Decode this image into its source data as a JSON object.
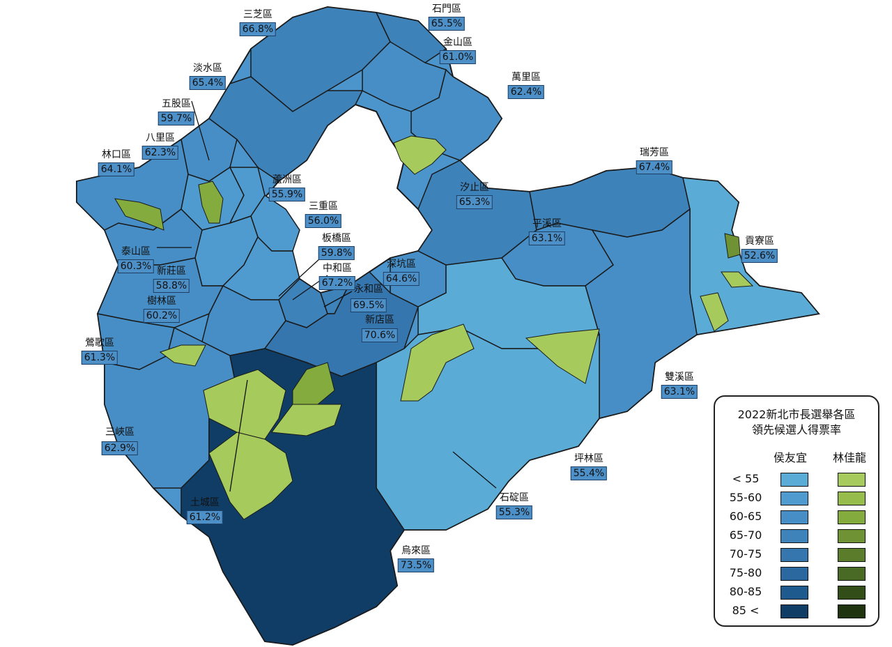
{
  "legend": {
    "title_line1": "2022新北市長選舉各區",
    "title_line2": "領先候選人得票率",
    "candidate_a": "侯友宜",
    "candidate_b": "林佳龍",
    "ranges": [
      "< 55",
      "55-60",
      "60-65",
      "65-70",
      "70-75",
      "75-80",
      "80-85",
      "85 <"
    ],
    "colors_a": [
      "#5aabd6",
      "#4f9bcf",
      "#468ec5",
      "#3f83bb",
      "#3676ae",
      "#2b689f",
      "#1f5a8e",
      "#0f3d66"
    ],
    "colors_b": [
      "#a6cb5c",
      "#96bd4c",
      "#84ab3e",
      "#6f9334",
      "#5a7c2b",
      "#486a24",
      "#324d18",
      "#1e330e"
    ]
  },
  "districts": [
    {
      "name": "三芝區",
      "value": "66.8%",
      "leader": "侯友宜"
    },
    {
      "name": "石門區",
      "value": "65.5%",
      "leader": "侯友宜"
    },
    {
      "name": "金山區",
      "value": "61.0%",
      "leader": "侯友宜"
    },
    {
      "name": "萬里區",
      "value": "62.4%",
      "leader": "侯友宜"
    },
    {
      "name": "淡水區",
      "value": "65.4%",
      "leader": "侯友宜"
    },
    {
      "name": "五股區",
      "value": "59.7%",
      "leader": "侯友宜"
    },
    {
      "name": "八里區",
      "value": "62.3%",
      "leader": "侯友宜"
    },
    {
      "name": "林口區",
      "value": "64.1%",
      "leader": "侯友宜"
    },
    {
      "name": "蘆洲區",
      "value": "55.9%",
      "leader": "侯友宜"
    },
    {
      "name": "三重區",
      "value": "56.0%",
      "leader": "侯友宜"
    },
    {
      "name": "汐止區",
      "value": "65.3%",
      "leader": "侯友宜"
    },
    {
      "name": "瑞芳區",
      "value": "67.4%",
      "leader": "侯友宜"
    },
    {
      "name": "平溪區",
      "value": "63.1%",
      "leader": "侯友宜"
    },
    {
      "name": "貢寮區",
      "value": "52.6%",
      "leader": "侯友宜"
    },
    {
      "name": "板橋區",
      "value": "59.8%",
      "leader": "侯友宜"
    },
    {
      "name": "泰山區",
      "value": "60.3%",
      "leader": "侯友宜"
    },
    {
      "name": "中和區",
      "value": "67.2%",
      "leader": "侯友宜"
    },
    {
      "name": "深坑區",
      "value": "64.6%",
      "leader": "侯友宜"
    },
    {
      "name": "新莊區",
      "value": "58.8%",
      "leader": "侯友宜"
    },
    {
      "name": "永和區",
      "value": "69.5%",
      "leader": "侯友宜"
    },
    {
      "name": "樹林區",
      "value": "60.2%",
      "leader": "侯友宜"
    },
    {
      "name": "新店區",
      "value": "70.6%",
      "leader": "侯友宜"
    },
    {
      "name": "鶯歌區",
      "value": "61.3%",
      "leader": "侯友宜"
    },
    {
      "name": "雙溪區",
      "value": "63.1%",
      "leader": "侯友宜"
    },
    {
      "name": "三峽區",
      "value": "62.9%",
      "leader": "侯友宜"
    },
    {
      "name": "坪林區",
      "value": "55.4%",
      "leader": "侯友宜"
    },
    {
      "name": "石碇區",
      "value": "55.3%",
      "leader": "侯友宜"
    },
    {
      "name": "土城區",
      "value": "61.2%",
      "leader": "侯友宜"
    },
    {
      "name": "烏來區",
      "value": "73.5%",
      "leader": "侯友宜"
    }
  ]
}
